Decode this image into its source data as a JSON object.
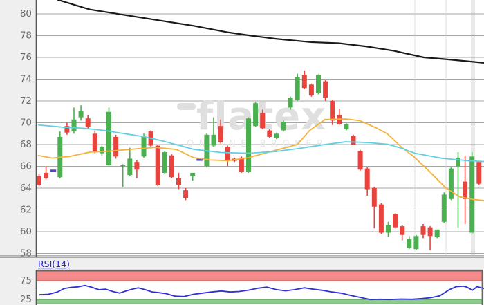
{
  "watermark": {
    "text": "flatex",
    "subtitle": "ONLINE BROKER"
  },
  "rsi_label": "RSI(14)",
  "colors": {
    "page_bg": "#efeff0",
    "plot_bg": "#ffffff",
    "grid": "#a6a6a6",
    "axis_line": "#555555",
    "label": "#6b6b6b",
    "up": "#4bb04f",
    "down": "#e8433c",
    "doji": "#5544cc",
    "ma_orange": "#f2b33d",
    "ma_cyan": "#5fd0e4",
    "ma_black": "#1a1a1a",
    "separator": "#dcdcdc",
    "right_border": "#9a9a9a",
    "panel_border": "#666666",
    "rsi_line": "#2f2fd6",
    "rsi_label_color": "#2222dd",
    "band_red_fill": "#f58a8a",
    "band_red_edge": "#e05a5a",
    "band_green_fill": "#8fca8f",
    "band_green_edge": "#55a855",
    "mid_line": "#b0b0b0",
    "watermark_color": "#dfdfdf",
    "watermark_sub_color": "#e7e7e7"
  },
  "chart_data": {
    "type": "candlestick",
    "title": "",
    "price_axis": {
      "min": 57.65,
      "max": 81.27,
      "ticks": [
        80,
        78,
        76,
        74,
        72,
        70,
        68,
        66,
        64,
        62,
        60,
        58
      ]
    },
    "candles": [
      [
        65.1,
        65.3,
        64.2,
        64.3
      ],
      [
        65.4,
        66.0,
        64.8,
        64.9
      ],
      [
        65.6,
        65.6,
        65.6,
        65.6
      ],
      [
        65.0,
        69.2,
        64.9,
        68.7
      ],
      [
        69.7,
        70.0,
        68.9,
        69.1
      ],
      [
        69.2,
        71.4,
        69.0,
        70.3
      ],
      [
        70.5,
        71.6,
        70.2,
        71.1
      ],
      [
        70.4,
        70.7,
        69.4,
        69.6
      ],
      [
        69.0,
        69.3,
        67.2,
        67.3
      ],
      [
        67.2,
        67.9,
        67.0,
        67.8
      ],
      [
        66.1,
        71.4,
        66.0,
        71.0
      ],
      [
        68.7,
        68.9,
        66.7,
        66.9
      ],
      [
        66.0,
        66.2,
        64.1,
        66.1
      ],
      [
        65.2,
        67.7,
        65.1,
        66.7
      ],
      [
        66.4,
        66.6,
        64.9,
        65.7
      ],
      [
        66.9,
        69.0,
        66.8,
        68.7
      ],
      [
        69.2,
        69.3,
        67.8,
        67.9
      ],
      [
        67.9,
        68.0,
        64.2,
        64.3
      ],
      [
        65.4,
        67.4,
        65.3,
        67.3
      ],
      [
        67.0,
        67.1,
        64.9,
        65.0
      ],
      [
        64.9,
        65.4,
        63.9,
        64.3
      ],
      [
        63.8,
        64.0,
        62.9,
        63.1
      ],
      [
        65.1,
        65.4,
        64.7,
        65.4
      ],
      [
        66.6,
        66.6,
        66.6,
        66.6
      ],
      [
        66.0,
        69.0,
        65.9,
        68.9
      ],
      [
        67.9,
        70.5,
        67.8,
        68.9
      ],
      [
        69.7,
        70.3,
        68.1,
        68.2
      ],
      [
        67.8,
        67.9,
        66.0,
        66.5
      ],
      [
        66.7,
        66.8,
        66.4,
        66.5
      ],
      [
        66.8,
        66.9,
        65.4,
        65.5
      ],
      [
        65.5,
        70.5,
        65.4,
        70.4
      ],
      [
        69.7,
        71.9,
        69.6,
        71.8
      ],
      [
        70.9,
        71.2,
        69.4,
        69.5
      ],
      [
        69.3,
        69.4,
        68.6,
        68.7
      ],
      [
        68.6,
        69.1,
        68.5,
        69.0
      ],
      [
        69.3,
        70.2,
        69.2,
        70.1
      ],
      [
        71.4,
        72.4,
        71.2,
        72.3
      ],
      [
        72.1,
        74.5,
        72.0,
        74.2
      ],
      [
        74.4,
        74.8,
        73.1,
        73.2
      ],
      [
        73.5,
        73.6,
        72.4,
        72.5
      ],
      [
        72.7,
        74.45,
        72.6,
        74.4
      ],
      [
        73.8,
        73.9,
        72.0,
        72.3
      ],
      [
        72.0,
        72.1,
        69.8,
        70.2
      ],
      [
        70.7,
        71.3,
        69.8,
        69.9
      ],
      [
        69.4,
        69.95,
        69.3,
        69.9
      ],
      [
        68.8,
        68.9,
        67.95,
        68.0
      ],
      [
        67.4,
        67.5,
        65.6,
        65.7
      ],
      [
        65.8,
        65.9,
        63.3,
        63.9
      ],
      [
        64.0,
        64.1,
        60.3,
        62.3
      ],
      [
        62.5,
        62.6,
        59.8,
        59.9
      ],
      [
        59.9,
        60.9,
        59.5,
        60.6
      ],
      [
        61.6,
        61.7,
        60.3,
        60.4
      ],
      [
        60.5,
        60.6,
        59.2,
        59.7
      ],
      [
        58.5,
        59.6,
        58.4,
        59.3
      ],
      [
        58.4,
        59.7,
        58.3,
        59.6
      ],
      [
        60.5,
        60.7,
        59.4,
        59.7
      ],
      [
        60.4,
        60.5,
        58.3,
        59.6
      ],
      [
        59.5,
        60.2,
        59.4,
        60.2
      ],
      [
        60.9,
        63.6,
        60.8,
        63.4
      ],
      [
        63.0,
        65.9,
        62.9,
        65.8
      ],
      [
        66.0,
        67.3,
        60.4,
        66.8
      ],
      [
        64.6,
        67.0,
        60.7,
        63.0
      ],
      [
        59.9,
        67.3,
        59.8,
        66.9
      ],
      [
        66.4,
        66.5,
        64.3,
        64.4
      ]
    ],
    "overlays": {
      "ma_black": [
        [
          83,
          81.3
        ],
        [
          130,
          80.4
        ],
        [
          180,
          79.9
        ],
        [
          230,
          79.4
        ],
        [
          280,
          78.9
        ],
        [
          330,
          78.3
        ],
        [
          363,
          78.0
        ],
        [
          400,
          77.7
        ],
        [
          450,
          77.4
        ],
        [
          490,
          77.3
        ],
        [
          530,
          77.0
        ],
        [
          570,
          76.6
        ],
        [
          613,
          76.0
        ],
        [
          650,
          75.8
        ],
        [
          700,
          75.5
        ]
      ],
      "ma_cyan": [
        [
          55,
          69.8
        ],
        [
          90,
          69.6
        ],
        [
          120,
          69.5
        ],
        [
          150,
          69.3
        ],
        [
          180,
          69.0
        ],
        [
          210,
          68.7
        ],
        [
          240,
          68.25
        ],
        [
          280,
          67.56
        ],
        [
          320,
          67.27
        ],
        [
          360,
          67.2
        ],
        [
          400,
          67.37
        ],
        [
          430,
          67.62
        ],
        [
          470,
          68.0
        ],
        [
          500,
          68.25
        ],
        [
          530,
          68.19
        ],
        [
          560,
          68.03
        ],
        [
          580,
          67.68
        ],
        [
          600,
          67.2
        ],
        [
          640,
          66.73
        ],
        [
          680,
          66.5
        ],
        [
          700,
          66.44
        ]
      ],
      "ma_orange": [
        [
          55,
          67.0
        ],
        [
          75,
          66.76
        ],
        [
          100,
          66.9
        ],
        [
          130,
          67.3
        ],
        [
          160,
          67.4
        ],
        [
          200,
          67.62
        ],
        [
          225,
          67.73
        ],
        [
          255,
          67.55
        ],
        [
          280,
          66.8
        ],
        [
          305,
          66.58
        ],
        [
          330,
          66.52
        ],
        [
          360,
          66.8
        ],
        [
          400,
          67.5
        ],
        [
          430,
          68.0
        ],
        [
          448,
          69.3
        ],
        [
          470,
          70.3
        ],
        [
          500,
          70.35
        ],
        [
          520,
          70.2
        ],
        [
          545,
          69.5
        ],
        [
          560,
          69.0
        ],
        [
          580,
          67.8
        ],
        [
          600,
          66.8
        ],
        [
          620,
          65.6
        ],
        [
          645,
          64.0
        ],
        [
          665,
          63.2
        ],
        [
          685,
          62.95
        ],
        [
          700,
          62.86
        ]
      ]
    },
    "separators_x": [
      600,
      645
    ],
    "right_border_x": [
      682.5,
      685.5
    ],
    "rsi": {
      "period": 14,
      "axis": {
        "min": 0,
        "max": 100,
        "ticks": [
          75,
          25
        ]
      },
      "overbought_band": [
        75,
        100
      ],
      "oversold_band": [
        0,
        25
      ],
      "mid_level": 50,
      "points": [
        [
          57,
          37.6
        ],
        [
          70,
          38.9
        ],
        [
          83,
          45
        ],
        [
          93,
          54.3
        ],
        [
          103,
          57.4
        ],
        [
          113,
          58.7
        ],
        [
          123,
          62.4
        ],
        [
          133,
          57.4
        ],
        [
          143,
          51.2
        ],
        [
          153,
          52.4
        ],
        [
          163,
          46.3
        ],
        [
          173,
          42
        ],
        [
          183,
          48.1
        ],
        [
          193,
          53.1
        ],
        [
          200,
          56.1
        ],
        [
          210,
          51.2
        ],
        [
          220,
          45
        ],
        [
          230,
          43.1
        ],
        [
          240,
          40.7
        ],
        [
          253,
          33.9
        ],
        [
          266,
          32.8
        ],
        [
          280,
          38.9
        ],
        [
          293,
          42
        ],
        [
          306,
          45
        ],
        [
          320,
          47.6
        ],
        [
          333,
          45
        ],
        [
          346,
          46.3
        ],
        [
          360,
          50
        ],
        [
          373,
          55
        ],
        [
          386,
          58
        ],
        [
          400,
          51.2
        ],
        [
          413,
          48.1
        ],
        [
          426,
          51.2
        ],
        [
          440,
          56.1
        ],
        [
          453,
          52.4
        ],
        [
          466,
          49.4
        ],
        [
          480,
          45
        ],
        [
          493,
          42
        ],
        [
          510,
          34.6
        ],
        [
          523,
          29.6
        ],
        [
          536,
          24.7
        ],
        [
          550,
          25.3
        ],
        [
          563,
          24.7
        ],
        [
          580,
          25.9
        ],
        [
          596,
          25.3
        ],
        [
          610,
          27.2
        ],
        [
          623,
          29.6
        ],
        [
          636,
          34.6
        ],
        [
          650,
          51.3
        ],
        [
          660,
          59.3
        ],
        [
          670,
          60.5
        ],
        [
          676,
          57.4
        ],
        [
          683,
          49.4
        ],
        [
          690,
          59.3
        ],
        [
          697,
          55.6
        ],
        [
          700,
          54.3
        ]
      ]
    }
  }
}
